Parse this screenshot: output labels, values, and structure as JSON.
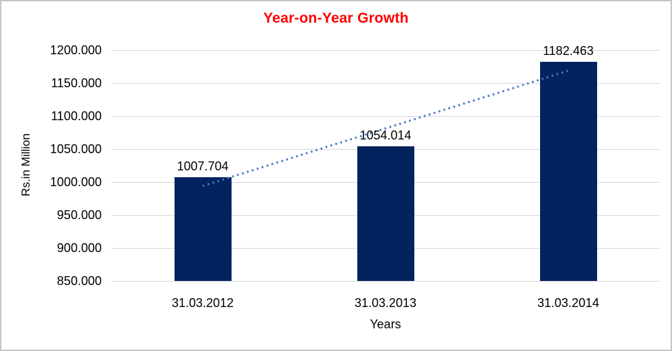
{
  "chart_data": {
    "type": "bar",
    "title": "Year-on-Year Growth",
    "xlabel": "Years",
    "ylabel": "Rs.in Million",
    "categories": [
      "31.03.2012",
      "31.03.2013",
      "31.03.2014"
    ],
    "values": [
      1007.704,
      1054.014,
      1182.463
    ],
    "value_labels": [
      "1007.704",
      "1054.014",
      "1182.463"
    ],
    "yticks": [
      "1200.000",
      "1150.000",
      "1100.000",
      "1050.000",
      "1000.000",
      "950.000",
      "900.000",
      "850.000"
    ],
    "ylim": [
      850,
      1200
    ],
    "grid": true,
    "legend": "none",
    "trendline": {
      "type": "linear",
      "style": "dotted"
    },
    "colors": {
      "bar": "#02235E",
      "trendline": "#4777C0",
      "title": "#FF0000",
      "gridline": "#D6D6D6",
      "text": "#000000",
      "background": "#FFFFFF",
      "border": "#C6C6C6"
    }
  }
}
